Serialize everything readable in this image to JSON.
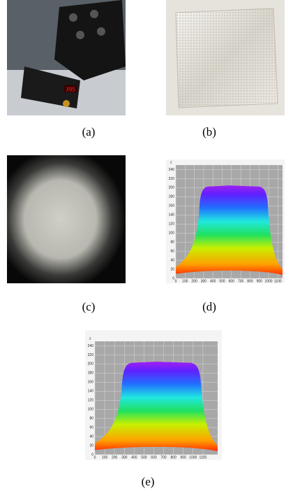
{
  "panels": [
    {
      "label": "(a)"
    },
    {
      "label": "(b)"
    },
    {
      "label": "(c)"
    },
    {
      "label": "(d)",
      "plot": {
        "axis_label": "z",
        "xlim": [
          0,
          1150
        ],
        "ylim": [
          0,
          250
        ],
        "xticks": [
          0,
          100,
          200,
          300,
          400,
          500,
          600,
          700,
          800,
          900,
          1000,
          1100
        ],
        "yticks": [
          0,
          20,
          40,
          60,
          80,
          100,
          120,
          140,
          160,
          180,
          200,
          220,
          240
        ]
      }
    },
    {
      "label": "(e)",
      "plot": {
        "axis_label": "z",
        "xlim": [
          0,
          1250
        ],
        "ylim": [
          0,
          250
        ],
        "xticks": [
          0,
          100,
          200,
          300,
          400,
          500,
          600,
          700,
          800,
          900,
          1000,
          1100
        ],
        "yticks": [
          0,
          20,
          40,
          60,
          80,
          100,
          120,
          140,
          160,
          180,
          200,
          220,
          240
        ]
      }
    }
  ]
}
